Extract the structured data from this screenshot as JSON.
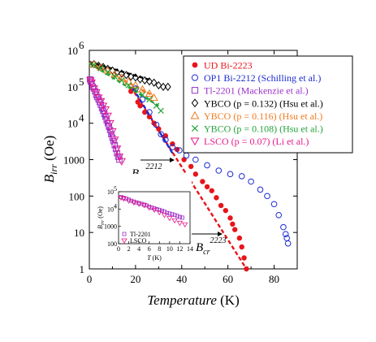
{
  "chart_data": {
    "type": "scatter",
    "xlabel_main": "Temperature",
    "xlabel_unit": " (K)",
    "ylabel_main": "B",
    "ylabel_sub": "irr",
    "ylabel_unit": " (Oe)",
    "xlim": [
      0,
      90
    ],
    "ylim": [
      1,
      1000000
    ],
    "yscale": "log",
    "x_ticks": [
      "0",
      "20",
      "40",
      "60",
      "80"
    ],
    "y_ticks": [
      {
        "value": 1,
        "label": "1"
      },
      {
        "value": 10,
        "label": "10"
      },
      {
        "value": 100,
        "label": "100"
      },
      {
        "value": 1000,
        "label": "1000"
      },
      {
        "value": 10000,
        "label": "10",
        "exp": "4"
      },
      {
        "value": 100000,
        "label": "10",
        "exp": "5"
      },
      {
        "value": 1000000,
        "label": "10",
        "exp": "6"
      }
    ],
    "legend_position": "top-right",
    "series": [
      {
        "name": "UD Bi-2223",
        "color": "#e8141b",
        "marker": "filled-circle",
        "points": [
          [
            18,
            75000
          ],
          [
            21,
            38000
          ],
          [
            22,
            30000
          ],
          [
            24,
            20000
          ],
          [
            26,
            15000
          ],
          [
            28,
            10000
          ],
          [
            30,
            7000
          ],
          [
            33,
            4500
          ],
          [
            36,
            2700
          ],
          [
            38,
            1900
          ],
          [
            41,
            1000
          ],
          [
            44,
            650
          ],
          [
            46,
            400
          ],
          [
            49,
            250
          ],
          [
            51,
            180
          ],
          [
            53,
            140
          ],
          [
            55,
            90
          ],
          [
            57,
            55
          ],
          [
            59,
            40
          ],
          [
            61,
            25
          ],
          [
            62,
            17
          ],
          [
            63,
            12
          ],
          [
            65,
            7
          ],
          [
            66,
            4
          ],
          [
            67,
            2
          ],
          [
            68,
            1
          ]
        ]
      },
      {
        "name": "OP1 Bi-2212 (Schilling et al.)",
        "color": "#1c2bd1",
        "marker": "open-circle",
        "points": [
          [
            20,
            90000
          ],
          [
            23,
            45000
          ],
          [
            26,
            20000
          ],
          [
            29,
            9000
          ],
          [
            31,
            5000
          ],
          [
            33,
            3500
          ],
          [
            36,
            2200
          ],
          [
            39,
            1800
          ],
          [
            42,
            1300
          ],
          [
            46,
            1000
          ],
          [
            51,
            700
          ],
          [
            56,
            500
          ],
          [
            61,
            400
          ],
          [
            66,
            350
          ],
          [
            70,
            250
          ],
          [
            74,
            150
          ],
          [
            77,
            100
          ],
          [
            80,
            60
          ],
          [
            82,
            30
          ],
          [
            84,
            14
          ],
          [
            85,
            9
          ],
          [
            85.5,
            7
          ],
          [
            86,
            5
          ]
        ]
      },
      {
        "name": "Tl-2201 (Mackenzie et al.)",
        "color": "#9b30c9",
        "marker": "open-square",
        "points": [
          [
            0.3,
            160000
          ],
          [
            0.6,
            140000
          ],
          [
            1,
            120000
          ],
          [
            1.5,
            100000
          ],
          [
            2,
            90000
          ],
          [
            2.5,
            75000
          ],
          [
            3,
            60000
          ],
          [
            3.5,
            52000
          ],
          [
            4,
            45000
          ],
          [
            4.5,
            38000
          ],
          [
            5,
            32000
          ],
          [
            5.5,
            26000
          ],
          [
            6,
            22000
          ],
          [
            6.5,
            18000
          ],
          [
            7,
            15000
          ],
          [
            7.5,
            12000
          ],
          [
            8,
            10000
          ],
          [
            8.5,
            8000
          ],
          [
            9,
            6500
          ],
          [
            9.5,
            5000
          ],
          [
            10,
            4000
          ],
          [
            10.5,
            3200
          ],
          [
            11,
            2500
          ],
          [
            11.5,
            2000
          ],
          [
            12,
            1500
          ],
          [
            12.5,
            1200
          ],
          [
            13,
            1000
          ]
        ]
      },
      {
        "name": "YBCO (p = 0.132) (Hsu et al.)",
        "color": "#000000",
        "marker": "open-diamond",
        "points": [
          [
            2,
            420000
          ],
          [
            4,
            380000
          ],
          [
            6,
            350000
          ],
          [
            8,
            310000
          ],
          [
            10,
            280000
          ],
          [
            12,
            250000
          ],
          [
            14,
            230000
          ],
          [
            16,
            210000
          ],
          [
            18,
            190000
          ],
          [
            20,
            180000
          ],
          [
            22,
            160000
          ],
          [
            24,
            150000
          ],
          [
            26,
            140000
          ],
          [
            28,
            130000
          ],
          [
            30,
            110000
          ],
          [
            32,
            100000
          ],
          [
            34,
            100000
          ]
        ]
      },
      {
        "name": "YBCO (p = 0.116) (Hsu et al.)",
        "color": "#f07a1e",
        "marker": "open-triangle",
        "points": [
          [
            2,
            410000
          ],
          [
            5,
            340000
          ],
          [
            8,
            280000
          ],
          [
            11,
            220000
          ],
          [
            14,
            180000
          ],
          [
            17,
            140000
          ],
          [
            20,
            110000
          ],
          [
            23,
            85000
          ],
          [
            26,
            65000
          ],
          [
            28,
            50000
          ]
        ]
      },
      {
        "name": "YBCO (p = 0.108) (Hsu et al.)",
        "color": "#23a33a",
        "marker": "cross",
        "points": [
          [
            2,
            400000
          ],
          [
            5,
            320000
          ],
          [
            8,
            250000
          ],
          [
            11,
            190000
          ],
          [
            14,
            150000
          ],
          [
            17,
            110000
          ],
          [
            20,
            85000
          ],
          [
            23,
            60000
          ],
          [
            26,
            45000
          ],
          [
            29,
            30000
          ],
          [
            31,
            22000
          ]
        ]
      },
      {
        "name": "LSCO (p = 0.07) (Li et al.)",
        "color": "#e8198b",
        "marker": "open-down-triangle",
        "points": [
          [
            0.5,
            150000
          ],
          [
            1,
            130000
          ],
          [
            2,
            90000
          ],
          [
            3,
            70000
          ],
          [
            4,
            50000
          ],
          [
            5,
            40000
          ],
          [
            6,
            30000
          ],
          [
            7,
            24000
          ],
          [
            8,
            16000
          ],
          [
            9,
            10000
          ],
          [
            10,
            6000
          ],
          [
            11,
            3500
          ],
          [
            12,
            2000
          ],
          [
            13,
            1200
          ],
          [
            14,
            900
          ]
        ]
      }
    ],
    "fits": [
      {
        "color": "#e8141b",
        "x": [
          18,
          68
        ],
        "y": [
          100000,
          1
        ]
      },
      {
        "color": "#1c2bd1",
        "x": [
          19,
          36
        ],
        "y": [
          90000,
          1500
        ]
      },
      {
        "color": "#9b30c9",
        "x": [
          5,
          13
        ],
        "y": [
          25000,
          1000
        ]
      },
      {
        "color": "#000000",
        "x": [
          0,
          27
        ],
        "y": [
          480000,
          150000
        ]
      },
      {
        "color": "#f07a1e",
        "x": [
          0,
          27
        ],
        "y": [
          460000,
          60000
        ]
      },
      {
        "color": "#23a33a",
        "x": [
          0,
          30
        ],
        "y": [
          440000,
          30000
        ]
      }
    ],
    "annotations": [
      {
        "id": "bcr2212",
        "text": "B",
        "sub": "cr",
        "sup": "2212"
      },
      {
        "id": "bcr2223",
        "text": "B",
        "sub": "cr",
        "sup": "2223"
      }
    ],
    "inset": {
      "xlabel_main": "T",
      "xlabel_unit": " (K)",
      "ylabel_main": "B",
      "ylabel_sub": "irr",
      "ylabel_unit": " (Oe)",
      "xlim": [
        0,
        14
      ],
      "ylim": [
        100,
        100000
      ],
      "x_ticks": [
        "0",
        "2",
        "4",
        "6",
        "8",
        "10",
        "12",
        "14"
      ],
      "y_ticks": [
        {
          "value": 100,
          "label": "100"
        },
        {
          "value": 1000,
          "label": "1000"
        },
        {
          "value": 10000,
          "label": "10",
          "exp": "4"
        },
        {
          "value": 100000,
          "label": "10",
          "exp": "5"
        }
      ],
      "legend": [
        "Tl-2201",
        "LSCO"
      ],
      "series": [
        {
          "name": "Tl-2201",
          "color": "#9b30c9",
          "marker": "open-square",
          "points": [
            [
              0.5,
              50000
            ],
            [
              1,
              45000
            ],
            [
              1.5,
              40000
            ],
            [
              2,
              35000
            ],
            [
              2.5,
              30000
            ],
            [
              3,
              27000
            ],
            [
              3.5,
              24000
            ],
            [
              4,
              22000
            ],
            [
              4.5,
              20000
            ],
            [
              5,
              18000
            ],
            [
              5.5,
              16000
            ],
            [
              6,
              14000
            ],
            [
              6.5,
              12000
            ],
            [
              7,
              11000
            ],
            [
              7.5,
              10000
            ],
            [
              8,
              9000
            ],
            [
              8.5,
              8000
            ],
            [
              9,
              7000
            ],
            [
              9.5,
              6000
            ],
            [
              10,
              5500
            ],
            [
              10.5,
              5000
            ],
            [
              11,
              4500
            ],
            [
              11.5,
              4000
            ],
            [
              12,
              3500
            ],
            [
              12.5,
              3200
            ]
          ]
        },
        {
          "name": "LSCO",
          "color": "#e8198b",
          "marker": "open-down-triangle",
          "points": [
            [
              0.5,
              45000
            ],
            [
              1,
              40000
            ],
            [
              2,
              30000
            ],
            [
              3,
              24000
            ],
            [
              4,
              20000
            ],
            [
              5,
              17000
            ],
            [
              6,
              12000
            ],
            [
              7,
              9000
            ],
            [
              8,
              6500
            ],
            [
              9,
              4500
            ],
            [
              10,
              3000
            ],
            [
              11,
              2200
            ],
            [
              12,
              1600
            ],
            [
              13,
              1300
            ]
          ]
        }
      ]
    }
  }
}
